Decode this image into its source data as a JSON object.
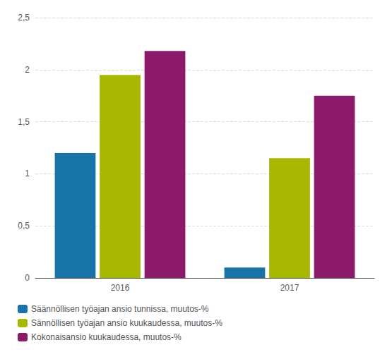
{
  "chart_data": {
    "type": "bar",
    "categories": [
      "2016",
      "2017"
    ],
    "series": [
      {
        "name": "Säännöllisen työajan ansio tunnissa, muutos-%",
        "color": "#1874A8",
        "values": [
          1.2,
          0.1
        ]
      },
      {
        "name": "Sännöllisen työajan ansio kuukaudessa, muutos-%",
        "color": "#A8B800",
        "values": [
          1.95,
          1.15
        ]
      },
      {
        "name": "Kokonaisansio kuukaudessa, muutos-%",
        "color": "#8B1A6B",
        "values": [
          2.18,
          1.75
        ]
      }
    ],
    "ylim": [
      0,
      2.5
    ],
    "yticks": [
      0,
      {
        "value": 0.5,
        "label": "0,5"
      },
      1,
      {
        "value": 1.5,
        "label": "1,5"
      },
      2,
      {
        "value": 2.5,
        "label": "2,5"
      }
    ],
    "grid": true,
    "legend": "bottom"
  }
}
